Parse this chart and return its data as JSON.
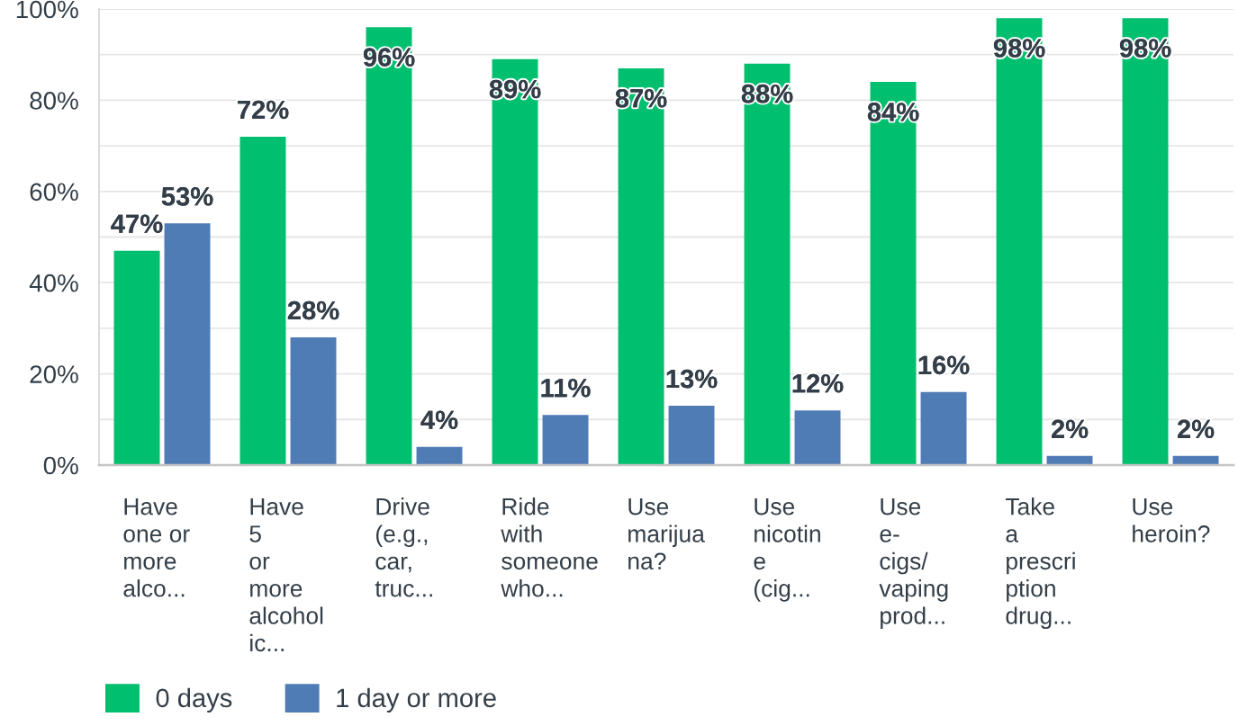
{
  "chart_data": {
    "type": "bar",
    "categories": [
      "Have\none or\nmore\nalco...",
      "Have\n5\nor\nmore\nalcohol\nic...",
      "Drive\n(e.g.,\ncar,\ntruc...",
      "Ride\nwith\nsomeone\nwho...",
      "Use\nmarijua\nna?",
      "Use\nnicotin\ne\n(cig...",
      "Use\ne-\ncigs/\nvaping\nprod...",
      "Take\na\nprescri\nption\ndrug...",
      "Use\nheroin?"
    ],
    "series": [
      {
        "name": "0 days",
        "color": "#00bf6f",
        "values": [
          47,
          72,
          96,
          89,
          87,
          88,
          84,
          98,
          98
        ],
        "value_labels": [
          "47%",
          "72%",
          "96%",
          "89%",
          "87%",
          "88%",
          "84%",
          "98%",
          "98%"
        ]
      },
      {
        "name": "1 day or more",
        "color": "#507cb6",
        "values": [
          53,
          28,
          4,
          11,
          13,
          12,
          16,
          2,
          2
        ],
        "value_labels": [
          "53%",
          "28%",
          "4%",
          "11%",
          "13%",
          "12%",
          "16%",
          "2%",
          "2%"
        ]
      }
    ],
    "ylim": [
      0,
      100
    ],
    "yticks": [
      {
        "value": 0,
        "label": "0%"
      },
      {
        "value": 10,
        "label": null
      },
      {
        "value": 20,
        "label": "20%"
      },
      {
        "value": 30,
        "label": null
      },
      {
        "value": 40,
        "label": "40%"
      },
      {
        "value": 50,
        "label": null
      },
      {
        "value": 60,
        "label": "60%"
      },
      {
        "value": 70,
        "label": null
      },
      {
        "value": 80,
        "label": "80%"
      },
      {
        "value": 90,
        "label": null
      },
      {
        "value": 100,
        "label": "100%"
      }
    ],
    "grid": "y",
    "legend": "bottom left"
  }
}
